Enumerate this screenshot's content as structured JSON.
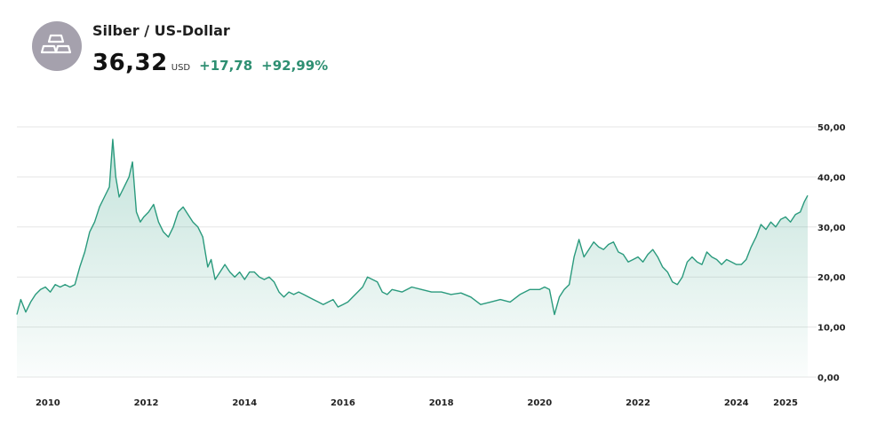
{
  "header": {
    "title": "Silber / US-Dollar",
    "price": "36,32",
    "unit": "USD",
    "change_abs": "+17,78",
    "change_pct": "+92,99%",
    "icon": "silver-bars-icon"
  },
  "colors": {
    "line": "#2a9a7d",
    "positive": "#2e8f72",
    "grid": "#e6e6e6",
    "logo_bg": "#a5a1ad"
  },
  "chart_data": {
    "type": "area",
    "title": "",
    "xlabel": "",
    "ylabel": "",
    "ylim": [
      0,
      50
    ],
    "xlim": [
      2009.37,
      2025.45
    ],
    "grid": "horizontal",
    "yticks": [
      {
        "value": 50,
        "label": "50,00"
      },
      {
        "value": 40,
        "label": "40,00"
      },
      {
        "value": 30,
        "label": "30,00"
      },
      {
        "value": 20,
        "label": "20,00"
      },
      {
        "value": 10,
        "label": "10,00"
      },
      {
        "value": 0,
        "label": "0,00"
      }
    ],
    "xticks": [
      {
        "value": 2010,
        "label": "2010"
      },
      {
        "value": 2012,
        "label": "2012"
      },
      {
        "value": 2014,
        "label": "2014"
      },
      {
        "value": 2016,
        "label": "2016"
      },
      {
        "value": 2018,
        "label": "2018"
      },
      {
        "value": 2020,
        "label": "2020"
      },
      {
        "value": 2022,
        "label": "2022"
      },
      {
        "value": 2024,
        "label": "2024"
      },
      {
        "value": 2025,
        "label": "2025"
      }
    ],
    "series": [
      {
        "x": [
          2009.37,
          2009.45,
          2009.55,
          2009.65,
          2009.75,
          2009.85,
          2009.95,
          2010.05,
          2010.15,
          2010.25,
          2010.35,
          2010.45,
          2010.55,
          2010.65,
          2010.75,
          2010.85,
          2010.95,
          2011.05,
          2011.15,
          2011.25,
          2011.32,
          2011.38,
          2011.45,
          2011.55,
          2011.65,
          2011.72,
          2011.8,
          2011.88,
          2011.95,
          2012.05,
          2012.15,
          2012.25,
          2012.35,
          2012.45,
          2012.55,
          2012.65,
          2012.75,
          2012.85,
          2012.95,
          2013.05,
          2013.15,
          2013.25,
          2013.32,
          2013.4,
          2013.5,
          2013.6,
          2013.7,
          2013.8,
          2013.9,
          2014.0,
          2014.1,
          2014.2,
          2014.3,
          2014.4,
          2014.5,
          2014.6,
          2014.7,
          2014.8,
          2014.9,
          2015.0,
          2015.1,
          2015.2,
          2015.3,
          2015.4,
          2015.5,
          2015.6,
          2015.7,
          2015.8,
          2015.9,
          2016.0,
          2016.1,
          2016.2,
          2016.3,
          2016.4,
          2016.5,
          2016.6,
          2016.7,
          2016.8,
          2016.9,
          2017.0,
          2017.2,
          2017.4,
          2017.6,
          2017.8,
          2018.0,
          2018.2,
          2018.4,
          2018.6,
          2018.8,
          2019.0,
          2019.2,
          2019.4,
          2019.6,
          2019.8,
          2020.0,
          2020.1,
          2020.2,
          2020.3,
          2020.4,
          2020.5,
          2020.55,
          2020.6,
          2020.7,
          2020.8,
          2020.9,
          2021.0,
          2021.1,
          2021.2,
          2021.3,
          2021.4,
          2021.5,
          2021.6,
          2021.7,
          2021.8,
          2021.9,
          2022.0,
          2022.1,
          2022.2,
          2022.3,
          2022.4,
          2022.5,
          2022.6,
          2022.7,
          2022.8,
          2022.9,
          2023.0,
          2023.1,
          2023.2,
          2023.3,
          2023.4,
          2023.5,
          2023.6,
          2023.7,
          2023.8,
          2023.9,
          2024.0,
          2024.1,
          2024.2,
          2024.3,
          2024.4,
          2024.5,
          2024.6,
          2024.7,
          2024.8,
          2024.9,
          2025.0,
          2025.1,
          2025.2,
          2025.3,
          2025.38,
          2025.45
        ],
        "y": [
          12.5,
          15.5,
          13.0,
          15.0,
          16.5,
          17.5,
          18.0,
          17.0,
          18.5,
          18.0,
          18.5,
          18.0,
          18.5,
          22.0,
          25.0,
          29.0,
          31.0,
          34.0,
          36.0,
          38.0,
          47.5,
          40.0,
          36.0,
          38.0,
          40.0,
          43.0,
          33.0,
          31.0,
          32.0,
          33.0,
          34.5,
          31.0,
          29.0,
          28.0,
          30.0,
          33.0,
          34.0,
          32.5,
          31.0,
          30.0,
          28.0,
          22.0,
          23.5,
          19.5,
          21.0,
          22.5,
          21.0,
          20.0,
          21.0,
          19.5,
          21.0,
          21.0,
          20.0,
          19.5,
          20.0,
          19.0,
          17.0,
          16.0,
          17.0,
          16.5,
          17.0,
          16.5,
          16.0,
          15.5,
          15.0,
          14.5,
          15.0,
          15.5,
          14.0,
          14.5,
          15.0,
          16.0,
          17.0,
          18.0,
          20.0,
          19.5,
          19.0,
          17.0,
          16.5,
          17.5,
          17.0,
          18.0,
          17.5,
          17.0,
          17.0,
          16.5,
          16.8,
          16.0,
          14.5,
          15.0,
          15.5,
          15.0,
          16.5,
          17.5,
          17.5,
          18.0,
          17.5,
          12.5,
          16.0,
          17.5,
          18.0,
          18.5,
          24.0,
          27.5,
          24.0,
          25.5,
          27.0,
          26.0,
          25.5,
          26.5,
          27.0,
          25.0,
          24.5,
          23.0,
          23.5,
          24.0,
          23.0,
          24.5,
          25.5,
          24.0,
          22.0,
          21.0,
          19.0,
          18.5,
          20.0,
          23.0,
          24.0,
          23.0,
          22.5,
          25.0,
          24.0,
          23.5,
          22.5,
          23.5,
          23.0,
          22.5,
          22.5,
          23.5,
          26.0,
          28.0,
          30.5,
          29.5,
          31.0,
          30.0,
          31.5,
          32.0,
          31.0,
          32.5,
          33.0,
          35.0,
          36.3
        ]
      }
    ]
  }
}
